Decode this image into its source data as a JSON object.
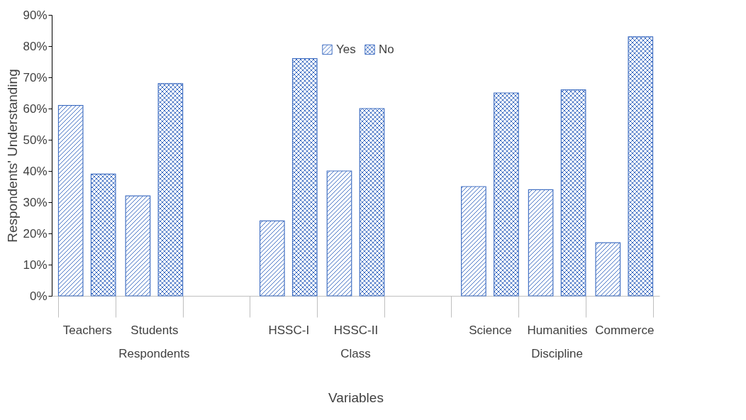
{
  "chart_data": {
    "type": "bar",
    "xlabel": "Variables",
    "ylabel": "Respondents' Understanding",
    "categories": [
      "Teachers",
      "Students",
      null,
      "HSSC-I",
      "HSSC-II",
      null,
      "Science",
      "Humanities",
      "Commerce"
    ],
    "series": [
      {
        "name": "Yes",
        "color": "#4472c4",
        "values": [
          61,
          32,
          null,
          24,
          40,
          null,
          35,
          34,
          17
        ]
      },
      {
        "name": "No",
        "color": "#4472c4",
        "values": [
          39,
          68,
          null,
          76,
          60,
          null,
          65,
          66,
          83
        ]
      }
    ],
    "ylim": [
      0,
      90
    ],
    "yticks": [
      {
        "value": 0,
        "label": "0%"
      },
      {
        "value": 10,
        "label": "10%"
      },
      {
        "value": 20,
        "label": "20%"
      },
      {
        "value": 30,
        "label": "30%"
      },
      {
        "value": 40,
        "label": "40%"
      },
      {
        "value": 50,
        "label": "50%"
      },
      {
        "value": 60,
        "label": "60%"
      },
      {
        "value": 70,
        "label": "70%"
      },
      {
        "value": 80,
        "label": "80%"
      },
      {
        "value": 90,
        "label": "90%"
      }
    ],
    "annotations": [
      "Respondents",
      "Class",
      "Discipline"
    ],
    "grid": false,
    "legend": "top"
  }
}
